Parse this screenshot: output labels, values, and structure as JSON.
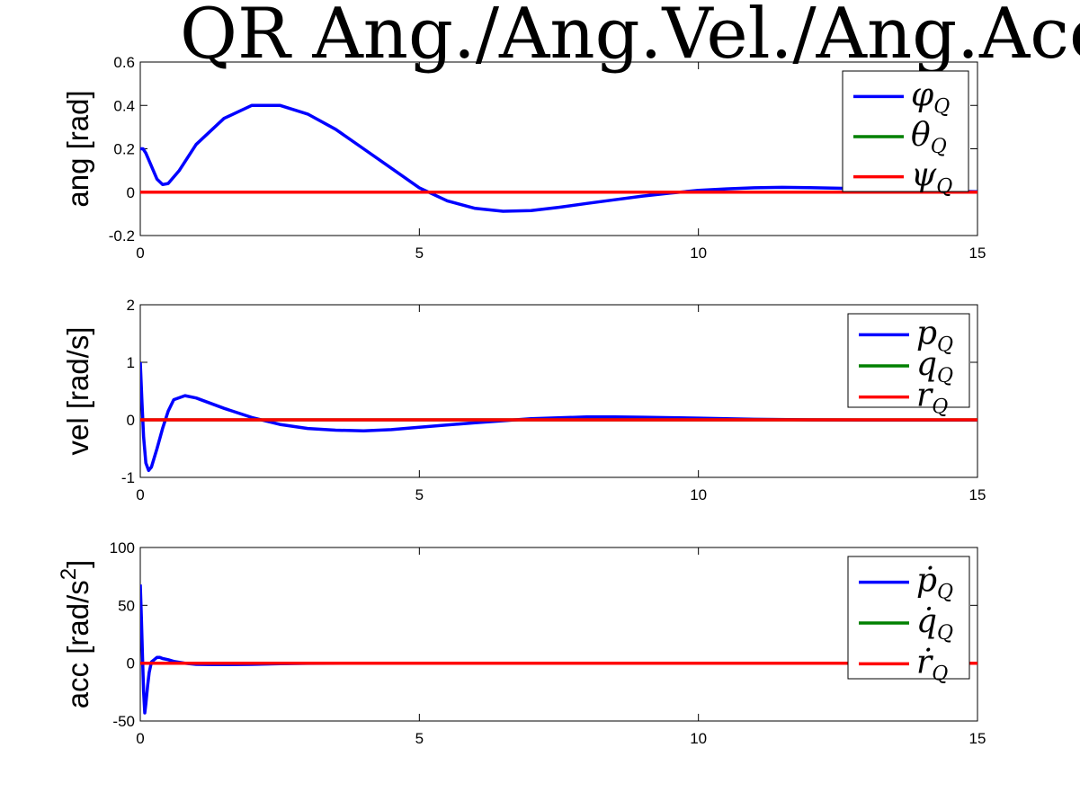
{
  "figure": {
    "title": "QR Ang./Ang.Vel./Ang.Acc."
  },
  "colors": {
    "series1": "#0000ff",
    "series2": "#008000",
    "series3": "#ff0000",
    "axis": "#000000",
    "background": "#ffffff"
  },
  "chart_data": [
    {
      "type": "line",
      "ylabel": "ang [rad]",
      "xlim": [
        0,
        15
      ],
      "ylim": [
        -0.2,
        0.6
      ],
      "xticks": [
        "0",
        "5",
        "10",
        "15"
      ],
      "yticks": [
        "-0.2",
        "0",
        "0.2",
        "0.4",
        "0.6"
      ],
      "legend_position": "top-right",
      "legend": [
        {
          "symbol": "φ",
          "sub": "Q"
        },
        {
          "symbol": "θ",
          "sub": "Q"
        },
        {
          "symbol": "ψ",
          "sub": "Q"
        }
      ],
      "series": [
        {
          "x": [
            0,
            0.05,
            0.1,
            0.2,
            0.3,
            0.4,
            0.5,
            0.7,
            1,
            1.5,
            2,
            2.5,
            3,
            3.5,
            4,
            4.5,
            5,
            5.5,
            6,
            6.5,
            7,
            7.5,
            8,
            8.5,
            9,
            9.5,
            10,
            10.5,
            11,
            11.5,
            12,
            12.5,
            13,
            13.5,
            14,
            14.5,
            15
          ],
          "y": [
            0.2,
            0.2,
            0.18,
            0.12,
            0.06,
            0.035,
            0.04,
            0.1,
            0.22,
            0.34,
            0.4,
            0.4,
            0.36,
            0.29,
            0.2,
            0.11,
            0.02,
            -0.04,
            -0.075,
            -0.088,
            -0.085,
            -0.07,
            -0.052,
            -0.035,
            -0.018,
            -0.004,
            0.008,
            0.015,
            0.02,
            0.022,
            0.021,
            0.018,
            0.015,
            0.01,
            0.006,
            0.004,
            0.002
          ]
        },
        {
          "x": [
            0,
            15
          ],
          "y": [
            0,
            0
          ]
        },
        {
          "x": [
            0,
            15
          ],
          "y": [
            0,
            0
          ]
        }
      ]
    },
    {
      "type": "line",
      "ylabel": "vel [rad/s]",
      "xlim": [
        0,
        15
      ],
      "ylim": [
        -1,
        2
      ],
      "xticks": [
        "0",
        "5",
        "10",
        "15"
      ],
      "yticks": [
        "-1",
        "0",
        "1",
        "2"
      ],
      "legend_position": "top-right",
      "legend": [
        {
          "symbol": "p",
          "sub": "Q"
        },
        {
          "symbol": "q",
          "sub": "Q"
        },
        {
          "symbol": "r",
          "sub": "Q"
        }
      ],
      "series": [
        {
          "x": [
            0,
            0.03,
            0.06,
            0.1,
            0.15,
            0.2,
            0.3,
            0.4,
            0.5,
            0.6,
            0.8,
            1,
            1.5,
            2,
            2.5,
            3,
            3.5,
            4,
            4.5,
            5,
            6,
            7,
            8,
            8.5,
            9,
            10,
            11,
            12,
            13,
            14,
            15
          ],
          "y": [
            1.0,
            0.3,
            -0.3,
            -0.75,
            -0.88,
            -0.82,
            -0.5,
            -0.15,
            0.15,
            0.35,
            0.42,
            0.38,
            0.2,
            0.04,
            -0.08,
            -0.15,
            -0.18,
            -0.19,
            -0.17,
            -0.13,
            -0.05,
            0.02,
            0.05,
            0.05,
            0.045,
            0.03,
            0.01,
            0.0,
            -0.005,
            -0.005,
            -0.003
          ]
        },
        {
          "x": [
            0,
            15
          ],
          "y": [
            0,
            0
          ]
        },
        {
          "x": [
            0,
            15
          ],
          "y": [
            0,
            0
          ]
        }
      ]
    },
    {
      "type": "line",
      "ylabel": "acc [rad/s",
      "ylabel_sup": "2",
      "ylabel_end": "]",
      "xlim": [
        0,
        15
      ],
      "ylim": [
        -50,
        100
      ],
      "xticks": [
        "0",
        "5",
        "10",
        "15"
      ],
      "yticks": [
        "-50",
        "0",
        "50",
        "100"
      ],
      "legend_position": "top-right",
      "legend": [
        {
          "symbol": "ṗ",
          "sub": "Q"
        },
        {
          "symbol": "q̇",
          "sub": "Q"
        },
        {
          "symbol": "ṙ",
          "sub": "Q"
        }
      ],
      "series": [
        {
          "x": [
            0,
            0.02,
            0.04,
            0.06,
            0.08,
            0.1,
            0.13,
            0.16,
            0.2,
            0.25,
            0.3,
            0.35,
            0.4,
            0.5,
            0.6,
            0.8,
            1.0,
            1.3,
            1.6,
            2.0,
            2.5,
            3,
            4,
            5,
            10,
            15
          ],
          "y": [
            68,
            40,
            5,
            -25,
            -43,
            -35,
            -20,
            -8,
            1,
            3,
            5,
            5,
            4,
            3,
            1.5,
            0,
            -1,
            -1.3,
            -1.2,
            -1,
            -0.5,
            -0.2,
            0,
            0,
            0,
            0
          ]
        },
        {
          "x": [
            0,
            15
          ],
          "y": [
            0,
            0
          ]
        },
        {
          "x": [
            0,
            15
          ],
          "y": [
            0,
            0
          ]
        }
      ]
    }
  ]
}
